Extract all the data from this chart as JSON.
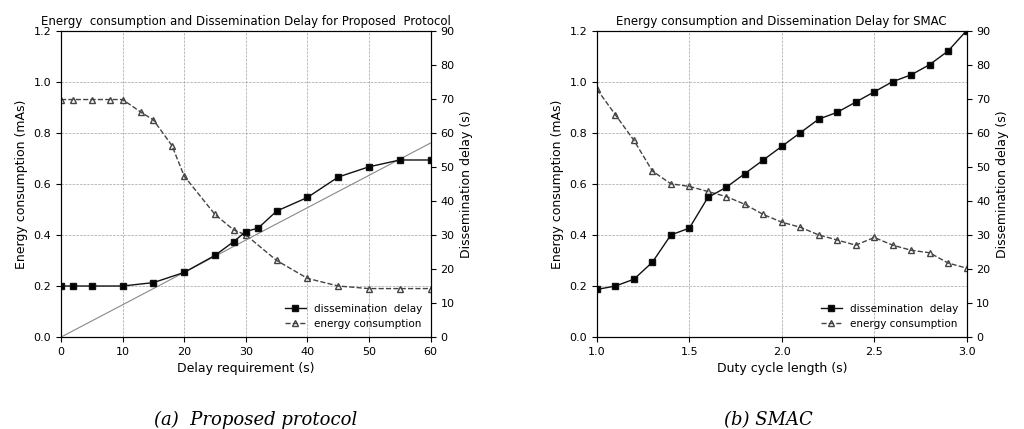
{
  "chart_a": {
    "title": "Energy  consumption and Dissemination Delay for Proposed  Protocol",
    "xlabel": "Delay requirement (s)",
    "ylabel_left": "Energy consumption (mAs)",
    "ylabel_right": "Dissemination delay (s)",
    "xlim": [
      0,
      60
    ],
    "ylim_left": [
      0,
      1.2
    ],
    "ylim_right": [
      0,
      90
    ],
    "xticks": [
      0,
      10,
      20,
      30,
      40,
      50,
      60
    ],
    "yticks_left": [
      0,
      0.2,
      0.4,
      0.6,
      0.8,
      1.0,
      1.2
    ],
    "yticks_right": [
      0,
      10,
      20,
      30,
      40,
      50,
      60,
      70,
      80,
      90
    ],
    "dissemination_delay_x": [
      0,
      2,
      5,
      10,
      15,
      20,
      25,
      28,
      30,
      32,
      35,
      40,
      45,
      50,
      55,
      60
    ],
    "dissemination_delay_y": [
      15,
      15,
      15,
      15,
      16,
      19,
      24,
      28,
      31,
      32,
      37,
      41,
      47,
      50,
      52,
      52
    ],
    "energy_consumption_x": [
      0,
      2,
      5,
      8,
      10,
      13,
      15,
      18,
      20,
      25,
      28,
      30,
      35,
      40,
      45,
      50,
      55,
      60
    ],
    "energy_consumption_y": [
      0.93,
      0.93,
      0.93,
      0.93,
      0.93,
      0.88,
      0.85,
      0.75,
      0.63,
      0.48,
      0.42,
      0.4,
      0.3,
      0.23,
      0.2,
      0.19,
      0.19,
      0.19
    ],
    "dissem_line_x": [
      0,
      60
    ],
    "dissem_line_y": [
      0,
      57
    ],
    "caption": "(a)  Proposed protocol"
  },
  "chart_b": {
    "title": "Energy consumption and Dissemination Delay for SMAC",
    "xlabel": "Duty cycle length (s)",
    "ylabel_left": "Energy consumption (mAs)",
    "ylabel_right": "Dissemination delay (s)",
    "xlim": [
      1,
      3
    ],
    "ylim_left": [
      0,
      1.2
    ],
    "ylim_right": [
      0,
      90
    ],
    "xticks": [
      1.0,
      1.5,
      2.0,
      2.5,
      3.0
    ],
    "yticks_left": [
      0,
      0.2,
      0.4,
      0.6,
      0.8,
      1.0,
      1.2
    ],
    "yticks_right": [
      0,
      10,
      20,
      30,
      40,
      50,
      60,
      70,
      80,
      90
    ],
    "dissemination_delay_x": [
      1.0,
      1.1,
      1.2,
      1.3,
      1.4,
      1.5,
      1.6,
      1.7,
      1.8,
      1.9,
      2.0,
      2.1,
      2.2,
      2.3,
      2.4,
      2.5,
      2.6,
      2.7,
      2.8,
      2.9,
      3.0
    ],
    "dissemination_delay_y": [
      14,
      15,
      17,
      22,
      30,
      32,
      41,
      44,
      48,
      52,
      56,
      60,
      64,
      66,
      69,
      72,
      75,
      77,
      80,
      84,
      90
    ],
    "energy_consumption_x": [
      1.0,
      1.1,
      1.2,
      1.3,
      1.4,
      1.5,
      1.6,
      1.7,
      1.8,
      1.9,
      2.0,
      2.1,
      2.2,
      2.3,
      2.4,
      2.5,
      2.6,
      2.7,
      2.8,
      2.9,
      3.0
    ],
    "energy_consumption_y": [
      0.97,
      0.87,
      0.77,
      0.65,
      0.6,
      0.59,
      0.57,
      0.55,
      0.52,
      0.48,
      0.45,
      0.43,
      0.4,
      0.38,
      0.36,
      0.39,
      0.36,
      0.34,
      0.33,
      0.29,
      0.27
    ],
    "caption": "(b) SMAC"
  },
  "background_color": "#ffffff",
  "grid_color": "#999999",
  "line_color_dissem": "#111111",
  "line_color_energy": "#444444"
}
